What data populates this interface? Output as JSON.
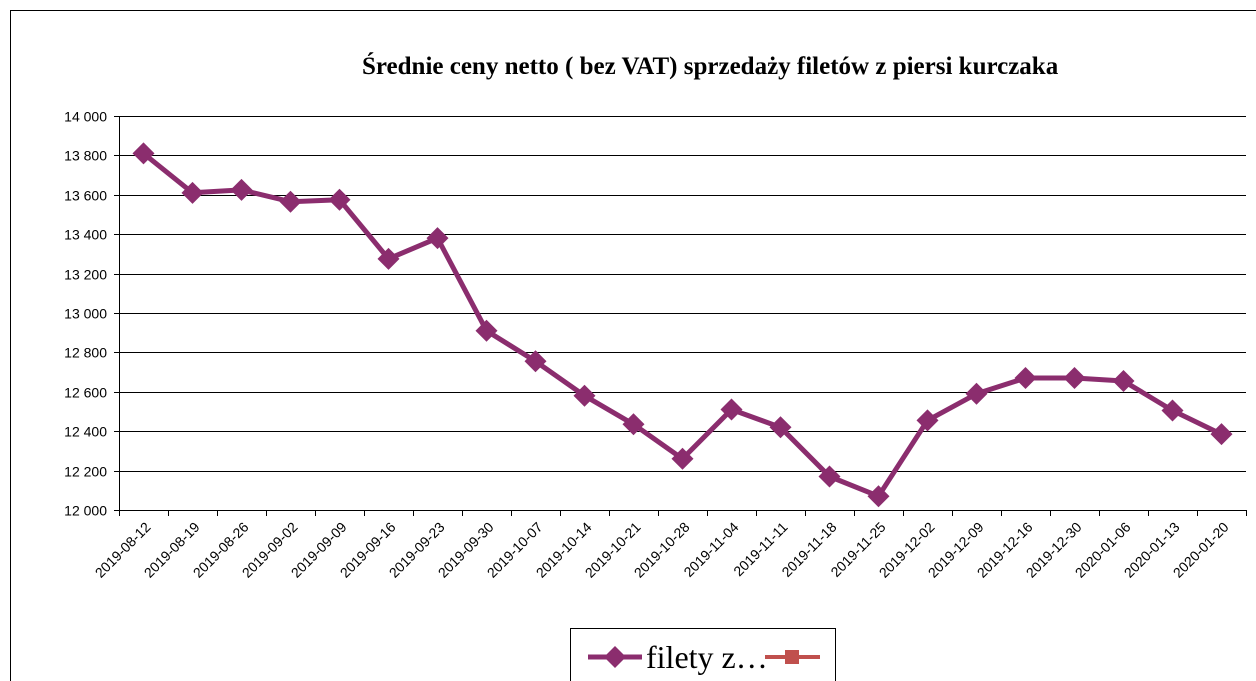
{
  "chart_data": {
    "type": "line",
    "title": "Średnie ceny netto ( bez VAT) sprzedaży filetów z piersi kurczaka",
    "categories": [
      "2019-08-12",
      "2019-08-19",
      "2019-08-26",
      "2019-09-02",
      "2019-09-09",
      "2019-09-16",
      "2019-09-23",
      "2019-09-30",
      "2019-10-07",
      "2019-10-14",
      "2019-10-21",
      "2019-10-28",
      "2019-11-04",
      "2019-11-11",
      "2019-11-18",
      "2019-11-25",
      "2019-12-02",
      "2019-12-09",
      "2019-12-16",
      "2019-12-30",
      "2020-01-06",
      "2020-01-13",
      "2020-01-20"
    ],
    "series": [
      {
        "name": "filety z…",
        "color": "#8b2d6e",
        "values": [
          13810,
          13610,
          13625,
          13565,
          13575,
          13275,
          13380,
          12910,
          12755,
          12580,
          12435,
          12260,
          12510,
          12420,
          12170,
          12070,
          12455,
          12590,
          12670,
          12670,
          12655,
          12505,
          12385
        ]
      }
    ],
    "ylim": [
      12000,
      14000
    ],
    "yticks": [
      {
        "value": 12000,
        "label": "12 000"
      },
      {
        "value": 12200,
        "label": "12 200"
      },
      {
        "value": 12400,
        "label": "12 400"
      },
      {
        "value": 12600,
        "label": "12 600"
      },
      {
        "value": 12800,
        "label": "12 800"
      },
      {
        "value": 13000,
        "label": "13 000"
      },
      {
        "value": 13200,
        "label": "13 200"
      },
      {
        "value": 13400,
        "label": "13 400"
      },
      {
        "value": 13600,
        "label": "13 600"
      },
      {
        "value": 13800,
        "label": "13 800"
      },
      {
        "value": 14000,
        "label": "14 000"
      }
    ],
    "grid": true
  }
}
